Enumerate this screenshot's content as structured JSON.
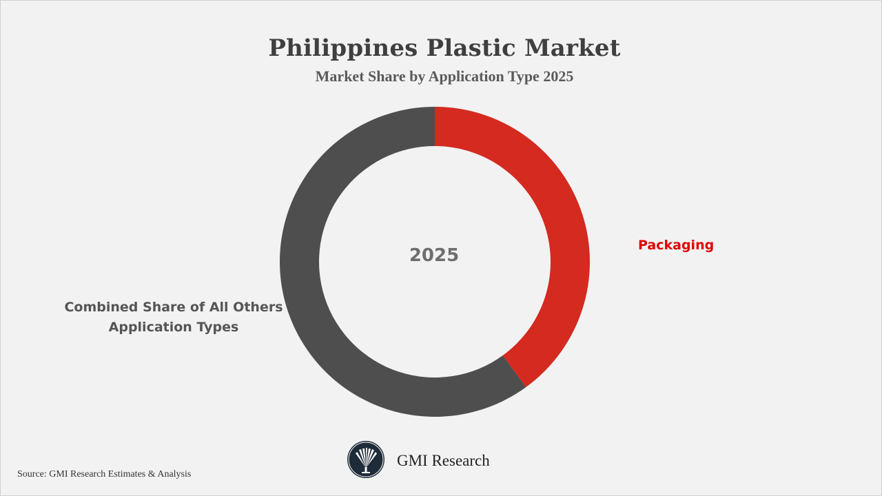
{
  "header": {
    "title": "Philippines Plastic Market",
    "subtitle": "Market Share by Application Type 2025"
  },
  "chart_data": {
    "type": "pie",
    "title": "Philippines Plastic Market",
    "subtitle": "Market Share by Application Type 2025",
    "center_label": "2025",
    "slices": [
      {
        "label": "Packaging",
        "value": 40,
        "color": "#d42a20",
        "label_color": "#e00000"
      },
      {
        "label": "Combined Share of All Others Application Types",
        "value": 60,
        "color": "#4e4e4e",
        "label_color": "#555555"
      }
    ]
  },
  "labels": {
    "packaging": "Packaging",
    "others_line1": "Combined Share of All Others",
    "others_line2": "Application Types"
  },
  "footer": {
    "brand": "GMI Research",
    "logo_icon": "gmi-fan-logo-icon",
    "source": "Source: GMI Research Estimates & Analysis"
  }
}
